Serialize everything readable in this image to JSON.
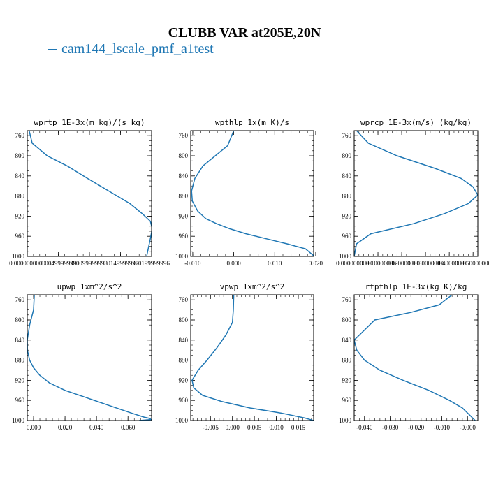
{
  "title": "CLUBB VAR at205E,20N",
  "legend": {
    "label": "cam144_lscale_pmf_a1test",
    "color": "#1f77b4"
  },
  "colors": {
    "series": "#1f77b4",
    "axis": "#000000"
  },
  "chart_data": [
    {
      "type": "line",
      "title": "wprtp  1E-3x(m kg)/(s kg)",
      "xlim": [
        0,
        0.02
      ],
      "ylim": [
        1000,
        750
      ],
      "xticks": [
        0,
        0.005,
        0.01,
        0.015,
        0.02
      ],
      "xticklabels": [
        "0.0000000000",
        "0.0049999999",
        "0.0099999998",
        "0.0149999997",
        "0.0199999996"
      ],
      "xminor": 0.001,
      "yticks": [
        760,
        800,
        840,
        880,
        920,
        960,
        1000
      ],
      "yminor": 10,
      "series": [
        {
          "x": [
            0.0003,
            0.0008,
            0.0032,
            0.0064,
            0.0097,
            0.0131,
            0.0165,
            0.0185,
            0.0198,
            0.0201,
            0.0198,
            0.0192
          ],
          "y": [
            750,
            775,
            800,
            820,
            845,
            870,
            895,
            915,
            930,
            945,
            965,
            1000
          ]
        }
      ]
    },
    {
      "type": "line",
      "title": "wpthlp  1x(m K)/s",
      "xlim": [
        -0.0105,
        0.0195
      ],
      "ylim": [
        1000,
        750
      ],
      "xticks": [
        -0.01,
        0,
        0.01,
        0.02
      ],
      "xticklabels": [
        "-0.010",
        "0.000",
        "0.010",
        "0.020"
      ],
      "xminor": 0.002,
      "yticks": [
        760,
        800,
        840,
        880,
        920,
        960,
        1000
      ],
      "yminor": 10,
      "series": [
        {
          "x": [
            0,
            -0.0015,
            -0.0075,
            -0.0095,
            -0.0103,
            -0.0101,
            -0.0088,
            -0.0068,
            -0.0042,
            -0.001,
            0.003,
            0.008,
            0.013,
            0.0175,
            0.0197
          ],
          "y": [
            750,
            780,
            820,
            845,
            870,
            890,
            910,
            925,
            935,
            945,
            955,
            965,
            975,
            985,
            1000
          ]
        }
      ]
    },
    {
      "type": "line",
      "title": "wprcp  1E-3x(m/s) (kg/kg)",
      "xlim": [
        0,
        0.0052
      ],
      "ylim": [
        1000,
        750
      ],
      "xticks": [
        0,
        0.001,
        0.002,
        0.003,
        0.004,
        0.005
      ],
      "xticklabels": [
        "0.0000000000",
        "0.0010000000",
        "0.0020000000",
        "0.0030000000",
        "0.0040000000",
        "0.0050000000"
      ],
      "xminor": 0.0002,
      "yticks": [
        760,
        800,
        840,
        880,
        920,
        960,
        1000
      ],
      "yminor": 10,
      "series": [
        {
          "x": [
            0.0001,
            0.0006,
            0.0018,
            0.0034,
            0.0045,
            0.005,
            0.0052,
            0.0048,
            0.0038,
            0.0025,
            0.0007,
            0.0001,
            0.0
          ],
          "y": [
            750,
            775,
            800,
            825,
            845,
            862,
            878,
            895,
            915,
            935,
            955,
            975,
            1000
          ]
        }
      ]
    },
    {
      "type": "line",
      "title": "upwp  1xm^2/s^2",
      "xlim": [
        -0.004,
        0.075
      ],
      "ylim": [
        1000,
        750
      ],
      "xticks": [
        0,
        0.02,
        0.04,
        0.06
      ],
      "xticklabels": [
        "0.000",
        "0.020",
        "0.040",
        "0.060"
      ],
      "xminor": 0.004,
      "yticks": [
        760,
        800,
        840,
        880,
        920,
        960,
        1000
      ],
      "yminor": 10,
      "series": [
        {
          "x": [
            0.0005,
            0,
            -0.0025,
            -0.004,
            -0.0039,
            -0.0025,
            0.0,
            0.004,
            0.01,
            0.02,
            0.034,
            0.048,
            0.062,
            0.07,
            0.074,
            0.0745,
            0.067
          ],
          "y": [
            750,
            780,
            810,
            840,
            860,
            880,
            895,
            910,
            925,
            940,
            955,
            970,
            985,
            993,
            996,
            998,
            1000
          ]
        }
      ]
    },
    {
      "type": "line",
      "title": "vpwp  1xm^2/s^2",
      "xlim": [
        -0.0095,
        0.0185
      ],
      "ylim": [
        1000,
        750
      ],
      "xticks": [
        -0.005,
        0,
        0.005,
        0.01,
        0.015
      ],
      "xticklabels": [
        "-0.005",
        "0.000",
        "0.005",
        "0.010",
        "0.015"
      ],
      "xminor": 0.001,
      "yticks": [
        760,
        800,
        840,
        880,
        920,
        960,
        1000
      ],
      "yminor": 10,
      "series": [
        {
          "x": [
            0.0003,
            0.0002,
            0,
            -0.0015,
            -0.0035,
            -0.0058,
            -0.0078,
            -0.0092,
            -0.0088,
            -0.0068,
            -0.0025,
            0.004,
            0.011,
            0.0165,
            0.0185
          ],
          "y": [
            750,
            780,
            805,
            830,
            855,
            880,
            900,
            920,
            935,
            950,
            962,
            975,
            985,
            995,
            1000
          ]
        }
      ]
    },
    {
      "type": "line",
      "title": "rtpthlp  1E-3x(kg K)/kg",
      "xlim": [
        -0.044,
        0.004
      ],
      "ylim": [
        1000,
        750
      ],
      "xticks": [
        -0.04,
        -0.03,
        -0.02,
        -0.01,
        0
      ],
      "xticklabels": [
        "-0.040",
        "-0.030",
        "-0.020",
        "-0.010",
        "-0.000"
      ],
      "xminor": 0.002,
      "yticks": [
        760,
        800,
        840,
        880,
        920,
        960,
        1000
      ],
      "yminor": 10,
      "series": [
        {
          "x": [
            -0.006,
            -0.011,
            -0.022,
            -0.036,
            -0.04,
            -0.044,
            -0.043,
            -0.04,
            -0.034,
            -0.025,
            -0.015,
            -0.007,
            -0.002,
            0.003
          ],
          "y": [
            750,
            770,
            785,
            800,
            820,
            840,
            860,
            880,
            900,
            920,
            940,
            960,
            975,
            1000
          ]
        }
      ]
    }
  ]
}
